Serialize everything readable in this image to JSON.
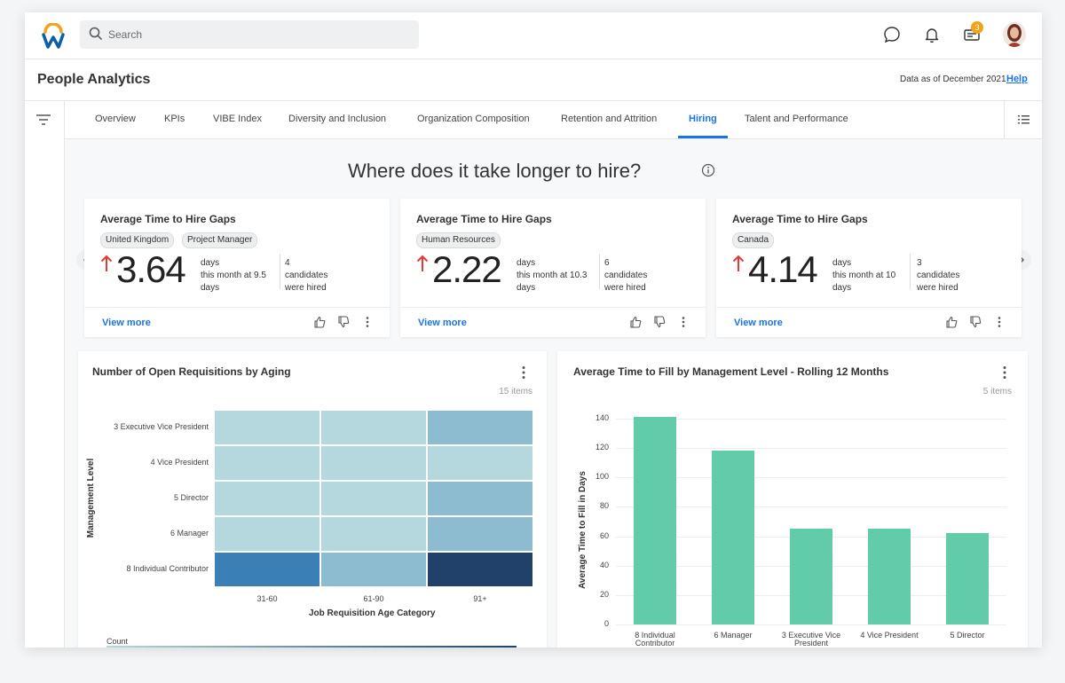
{
  "search": {
    "placeholder": "Search"
  },
  "topbar": {
    "notification_count": "3"
  },
  "page": {
    "title": "People Analytics",
    "data_as_of": "Data as of December 2021",
    "help": "Help"
  },
  "tabs": [
    {
      "label": "Overview"
    },
    {
      "label": "KPIs"
    },
    {
      "label": "VIBE Index"
    },
    {
      "label": "Diversity and Inclusion"
    },
    {
      "label": "Organization Composition"
    },
    {
      "label": "Retention and Attrition"
    },
    {
      "label": "Hiring",
      "active": true
    },
    {
      "label": "Talent and Performance"
    }
  ],
  "section_heading": "Where does it take longer to hire?",
  "cards": [
    {
      "title": "Average Time to Hire Gaps",
      "chips": [
        "United Kingdom",
        "Project Manager"
      ],
      "value": "3.64",
      "unit": "days",
      "desc": "this month at 9.5 days",
      "candidates_count": "4",
      "candidates_text": "candidates were hired",
      "view_more": "View more"
    },
    {
      "title": "Average Time to Hire Gaps",
      "chips": [
        "Human Resources"
      ],
      "value": "2.22",
      "unit": "days",
      "desc": "this month at 10.3 days",
      "candidates_count": "6",
      "candidates_text": "candidates were hired",
      "view_more": "View more"
    },
    {
      "title": "Average Time to Hire Gaps",
      "chips": [
        "Canada"
      ],
      "value": "4.14",
      "unit": "days",
      "desc": "this month at 10 days",
      "candidates_count": "3",
      "candidates_text": "candidates were hired",
      "view_more": "View more"
    }
  ],
  "colors": {
    "accent": "#1a73e8",
    "bar": "#62cba9",
    "up_arrow": "#e53935"
  },
  "chart_data": [
    {
      "type": "heatmap",
      "title": "Number of Open Requisitions by Aging",
      "items_label": "15 items",
      "xlabel": "Job Requisition Age Category",
      "ylabel": "Management Level",
      "x": [
        "31-60",
        "61-90",
        "91+"
      ],
      "y": [
        "3 Executive Vice President",
        "4 Vice President",
        "5 Director",
        "6 Manager",
        "8 Individual Contributor"
      ],
      "values": [
        [
          1,
          1,
          2
        ],
        [
          1,
          1,
          1
        ],
        [
          1,
          1,
          2
        ],
        [
          1,
          1,
          2
        ],
        [
          3,
          2,
          4
        ]
      ],
      "legend_label": "Count"
    },
    {
      "type": "bar",
      "title": "Average Time to Fill by Management Level - Rolling 12 Months",
      "items_label": "5 items",
      "xlabel": "",
      "ylabel": "Average Time to Fill in Days",
      "categories": [
        "8 Individual Contributor",
        "6 Manager",
        "3 Executive Vice President",
        "4 Vice President",
        "5 Director"
      ],
      "values": [
        141,
        118,
        65,
        65,
        62
      ],
      "ylim": [
        0,
        140
      ],
      "yticks": [
        0,
        20,
        40,
        60,
        80,
        100,
        120,
        140
      ]
    }
  ]
}
